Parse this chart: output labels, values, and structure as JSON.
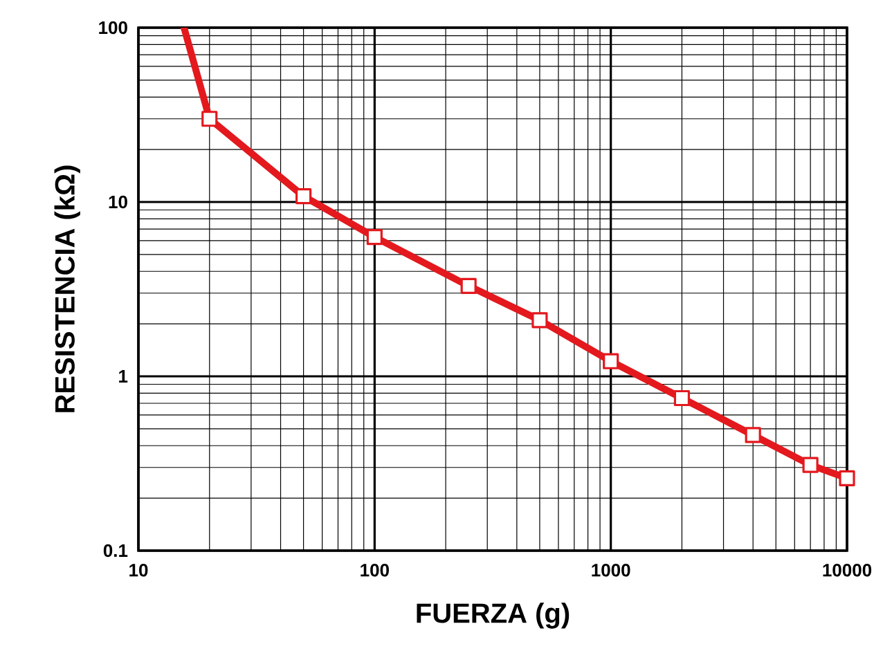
{
  "chart_data": {
    "type": "line",
    "xlabel": "FUERZA (g)",
    "ylabel": "RESISTENCIA (kΩ)",
    "log": "xy",
    "grid": true,
    "xlim": [
      10,
      10000
    ],
    "ylim": [
      0.1,
      100
    ],
    "xticks": [
      10,
      100,
      1000,
      10000
    ],
    "yticks": [
      0.1,
      1,
      10,
      100
    ],
    "series": [
      {
        "type": "line",
        "color": "#e3191e",
        "x": [
          15.6,
          20
        ],
        "values": [
          100,
          30
        ]
      },
      {
        "type": "line",
        "color": "#e3191e",
        "marker": "square",
        "x": [
          20,
          50,
          100,
          250,
          500,
          1000,
          2000,
          4000,
          7000,
          10000
        ],
        "values": [
          30,
          10.8,
          6.3,
          3.3,
          2.1,
          1.22,
          0.75,
          0.46,
          0.31,
          0.26
        ]
      }
    ]
  }
}
